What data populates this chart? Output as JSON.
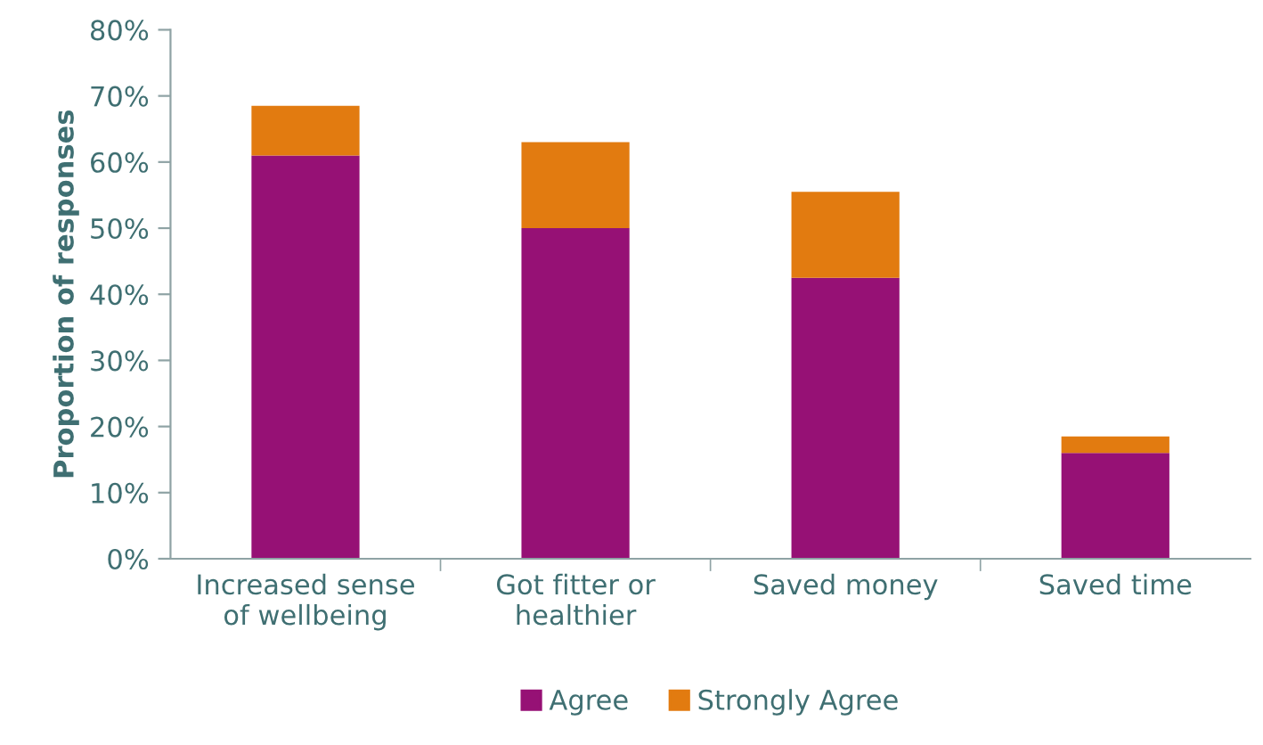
{
  "chart_data": {
    "type": "bar",
    "stacked": true,
    "ylabel": "Proportion of responses",
    "categories": [
      "Increased sense\nof wellbeing",
      "Got fitter or\nhealthier",
      "Saved money",
      "Saved time"
    ],
    "series": [
      {
        "name": "Agree",
        "color": "#961175",
        "values": [
          61,
          50,
          42.5,
          16
        ]
      },
      {
        "name": "Strongly Agree",
        "color": "#e27b10",
        "values": [
          7.5,
          13,
          13,
          2.5
        ]
      }
    ],
    "ylim": [
      0,
      80
    ],
    "yticks": [
      {
        "value": 0,
        "label": "0%"
      },
      {
        "value": 10,
        "label": "10%"
      },
      {
        "value": 20,
        "label": "20%"
      },
      {
        "value": 30,
        "label": "30%"
      },
      {
        "value": 40,
        "label": "40%"
      },
      {
        "value": 50,
        "label": "50%"
      },
      {
        "value": 60,
        "label": "60%"
      },
      {
        "value": 70,
        "label": "70%"
      },
      {
        "value": 80,
        "label": "80%"
      }
    ],
    "grid": false,
    "legend": "bottom"
  }
}
